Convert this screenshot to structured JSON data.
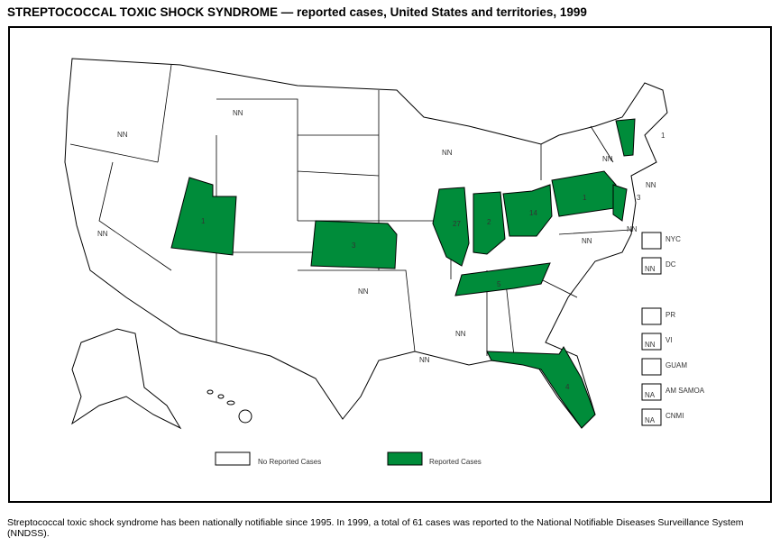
{
  "title": "STREPTOCOCCAL TOXIC SHOCK SYNDROME — reported cases, United States and territories, 1999",
  "colors": {
    "reported": "#008c3a",
    "none": "#ffffff"
  },
  "states": [
    {
      "name": "Washington",
      "label": ""
    },
    {
      "name": "Oregon",
      "label": "NN"
    },
    {
      "name": "Montana",
      "label": "NN"
    },
    {
      "name": "California",
      "label": "NN"
    },
    {
      "name": "Utah",
      "label": "1",
      "reported": true
    },
    {
      "name": "Kansas",
      "label": "3",
      "reported": true
    },
    {
      "name": "Oklahoma",
      "label": "NN"
    },
    {
      "name": "Wisconsin",
      "label": "NN"
    },
    {
      "name": "Illinois",
      "label": "27",
      "reported": true
    },
    {
      "name": "Indiana",
      "label": "2",
      "reported": true
    },
    {
      "name": "Ohio",
      "label": "14",
      "reported": true
    },
    {
      "name": "Tennessee",
      "label": "5",
      "reported": true
    },
    {
      "name": "Mississippi",
      "label": "NN"
    },
    {
      "name": "Louisiana",
      "label": "NN"
    },
    {
      "name": "Florida",
      "label": "4",
      "reported": true
    },
    {
      "name": "Pennsylvania",
      "label": "1",
      "reported": true
    },
    {
      "name": "New Jersey",
      "label": "3",
      "reported": true
    },
    {
      "name": "Vermont",
      "label": "1",
      "reported": true
    },
    {
      "name": "New York",
      "label": "NN"
    },
    {
      "name": "Connecticut",
      "label": "NN"
    },
    {
      "name": "Maryland",
      "label": "NN"
    },
    {
      "name": "Virginia",
      "label": "NN"
    }
  ],
  "territories": [
    {
      "name": "NYC",
      "value": ""
    },
    {
      "name": "DC",
      "value": "NN"
    },
    {
      "name": "PR",
      "value": ""
    },
    {
      "name": "VI",
      "value": "NN"
    },
    {
      "name": "GUAM",
      "value": ""
    },
    {
      "name": "AM SAMOA",
      "value": "NA"
    },
    {
      "name": "CNMI",
      "value": "NA"
    }
  ],
  "legend": {
    "none": "No Reported Cases",
    "reported": "Reported Cases"
  },
  "footnote": "Streptococcal toxic shock syndrome has been nationally notifiable since 1995. In 1999, a total of 61 cases was reported to the National Notifiable Diseases Surveillance System (NNDSS)."
}
